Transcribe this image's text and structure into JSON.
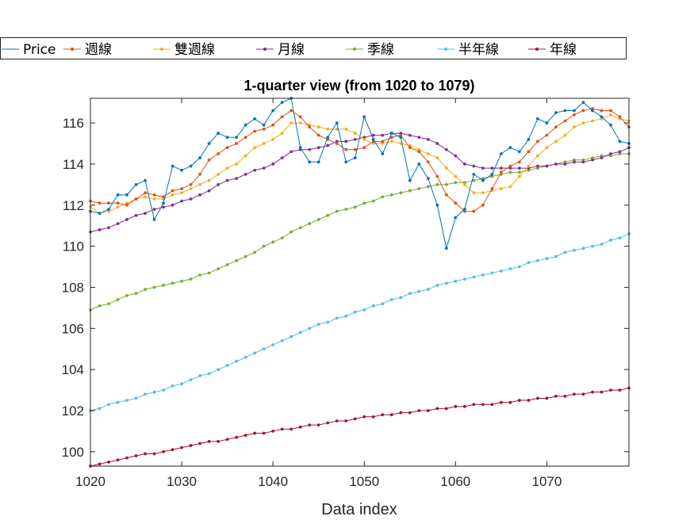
{
  "chart_data": {
    "type": "line",
    "title": "1-quarter view (from 1020 to 1079)",
    "xlabel": "Data index",
    "ylabel": "",
    "xlim": [
      1020,
      1079
    ],
    "ylim": [
      99.3,
      117.2
    ],
    "xticks": [
      1020,
      1030,
      1040,
      1050,
      1060,
      1070
    ],
    "yticks": [
      100,
      102,
      104,
      106,
      108,
      110,
      112,
      114,
      116
    ],
    "grid": false,
    "legend_placement": "top",
    "x": [
      1020,
      1021,
      1022,
      1023,
      1024,
      1025,
      1026,
      1027,
      1028,
      1029,
      1030,
      1031,
      1032,
      1033,
      1034,
      1035,
      1036,
      1037,
      1038,
      1039,
      1040,
      1041,
      1042,
      1043,
      1044,
      1045,
      1046,
      1047,
      1048,
      1049,
      1050,
      1051,
      1052,
      1053,
      1054,
      1055,
      1056,
      1057,
      1058,
      1059,
      1060,
      1061,
      1062,
      1063,
      1064,
      1065,
      1066,
      1067,
      1068,
      1069,
      1070,
      1071,
      1072,
      1073,
      1074,
      1075,
      1076,
      1077,
      1078,
      1079
    ],
    "series": [
      {
        "name": "Price",
        "color": "#0072BD",
        "values": [
          111.7,
          111.6,
          111.8,
          112.5,
          112.5,
          113.0,
          113.2,
          111.3,
          112.1,
          113.9,
          113.7,
          113.9,
          114.3,
          115.0,
          115.5,
          115.3,
          115.3,
          115.9,
          116.2,
          115.9,
          116.6,
          117.0,
          117.2,
          114.8,
          114.1,
          114.1,
          115.3,
          116.0,
          114.1,
          114.3,
          116.3,
          115.2,
          114.5,
          115.5,
          115.3,
          113.2,
          114.0,
          113.3,
          112.0,
          109.9,
          111.4,
          111.8,
          113.5,
          113.2,
          113.5,
          114.5,
          114.8,
          114.6,
          115.2,
          116.2,
          116.0,
          116.5,
          116.6,
          116.6,
          117.0,
          116.6,
          116.3,
          115.9,
          115.1,
          115.0
        ]
      },
      {
        "name": "週線",
        "color": "#D95319",
        "values": [
          112.2,
          112.1,
          112.1,
          112.1,
          112.0,
          112.3,
          112.6,
          112.5,
          112.4,
          112.7,
          112.8,
          113.0,
          113.5,
          114.2,
          114.5,
          114.8,
          115.0,
          115.3,
          115.6,
          115.7,
          115.9,
          116.3,
          116.6,
          116.3,
          115.8,
          115.4,
          115.2,
          115.0,
          114.7,
          114.7,
          114.8,
          115.1,
          115.1,
          115.3,
          115.4,
          114.8,
          114.6,
          114.1,
          113.4,
          112.5,
          112.1,
          111.7,
          111.7,
          112.0,
          112.8,
          113.6,
          113.9,
          114.1,
          114.6,
          115.1,
          115.4,
          115.8,
          116.1,
          116.4,
          116.6,
          116.7,
          116.6,
          116.6,
          116.3,
          115.8
        ]
      },
      {
        "name": "雙週線",
        "color": "#EDB120",
        "values": [
          111.9,
          111.6,
          111.7,
          111.9,
          112.1,
          112.3,
          112.4,
          112.3,
          112.3,
          112.5,
          112.6,
          112.8,
          113.0,
          113.2,
          113.5,
          113.8,
          114.0,
          114.4,
          114.8,
          115.0,
          115.2,
          115.5,
          116.0,
          116.0,
          115.9,
          115.8,
          115.7,
          115.7,
          115.7,
          115.5,
          115.2,
          115.0,
          115.0,
          115.1,
          115.0,
          114.9,
          114.7,
          114.5,
          114.3,
          113.8,
          113.4,
          113.0,
          112.6,
          112.6,
          112.7,
          112.8,
          112.9,
          113.4,
          113.9,
          114.4,
          114.8,
          115.1,
          115.4,
          115.8,
          116.0,
          116.1,
          116.2,
          116.4,
          116.2,
          116.1
        ]
      },
      {
        "name": "月線",
        "color": "#7E2F8E",
        "values": [
          110.7,
          110.8,
          110.9,
          111.1,
          111.3,
          111.5,
          111.6,
          111.8,
          111.9,
          112.0,
          112.2,
          112.3,
          112.5,
          112.7,
          113.0,
          113.2,
          113.3,
          113.5,
          113.7,
          113.8,
          114.0,
          114.3,
          114.6,
          114.7,
          114.7,
          114.8,
          114.9,
          115.1,
          115.1,
          115.2,
          115.3,
          115.4,
          115.4,
          115.5,
          115.5,
          115.4,
          115.3,
          115.2,
          115.0,
          114.7,
          114.4,
          114.0,
          113.9,
          113.8,
          113.8,
          113.8,
          113.8,
          113.8,
          113.8,
          113.9,
          113.9,
          114.0,
          114.0,
          114.1,
          114.1,
          114.2,
          114.3,
          114.5,
          114.6,
          114.8
        ]
      },
      {
        "name": "季線",
        "color": "#77AC30",
        "values": [
          106.9,
          107.1,
          107.2,
          107.4,
          107.6,
          107.7,
          107.9,
          108.0,
          108.1,
          108.2,
          108.3,
          108.4,
          108.6,
          108.7,
          108.9,
          109.1,
          109.3,
          109.5,
          109.7,
          110.0,
          110.2,
          110.4,
          110.7,
          110.9,
          111.1,
          111.3,
          111.5,
          111.7,
          111.8,
          111.9,
          112.1,
          112.2,
          112.4,
          112.5,
          112.6,
          112.7,
          112.8,
          112.9,
          113.0,
          113.0,
          113.1,
          113.1,
          113.2,
          113.3,
          113.4,
          113.5,
          113.6,
          113.6,
          113.7,
          113.8,
          113.9,
          114.0,
          114.1,
          114.2,
          114.2,
          114.3,
          114.4,
          114.4,
          114.5,
          114.5
        ]
      },
      {
        "name": "半年線",
        "color": "#4DBEEE",
        "values": [
          102.0,
          102.1,
          102.3,
          102.4,
          102.5,
          102.6,
          102.8,
          102.9,
          103.0,
          103.2,
          103.3,
          103.5,
          103.7,
          103.8,
          104.0,
          104.2,
          104.4,
          104.6,
          104.8,
          105.0,
          105.2,
          105.4,
          105.6,
          105.8,
          106.0,
          106.2,
          106.3,
          106.5,
          106.6,
          106.8,
          106.9,
          107.1,
          107.2,
          107.4,
          107.5,
          107.7,
          107.8,
          107.9,
          108.1,
          108.2,
          108.3,
          108.4,
          108.5,
          108.6,
          108.7,
          108.8,
          108.9,
          109.0,
          109.2,
          109.3,
          109.4,
          109.5,
          109.7,
          109.8,
          109.9,
          110.0,
          110.1,
          110.3,
          110.4,
          110.6
        ]
      },
      {
        "name": "年線",
        "color": "#A2142F",
        "values": [
          99.3,
          99.4,
          99.5,
          99.6,
          99.7,
          99.8,
          99.9,
          99.9,
          100.0,
          100.1,
          100.2,
          100.3,
          100.4,
          100.5,
          100.5,
          100.6,
          100.7,
          100.8,
          100.9,
          100.9,
          101.0,
          101.1,
          101.1,
          101.2,
          101.3,
          101.3,
          101.4,
          101.5,
          101.5,
          101.6,
          101.7,
          101.7,
          101.8,
          101.8,
          101.9,
          101.9,
          102.0,
          102.0,
          102.1,
          102.1,
          102.2,
          102.2,
          102.3,
          102.3,
          102.3,
          102.4,
          102.4,
          102.5,
          102.5,
          102.6,
          102.6,
          102.7,
          102.7,
          102.8,
          102.8,
          102.9,
          102.9,
          103.0,
          103.0,
          103.1
        ]
      }
    ]
  }
}
